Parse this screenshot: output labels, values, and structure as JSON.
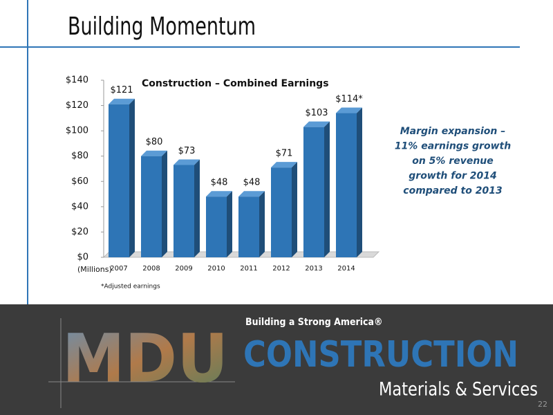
{
  "slide": {
    "title": "Building Momentum",
    "footnote": "*Adjusted earnings",
    "tagline": "Building a Strong America®",
    "logo_mdu": "MDU",
    "logo_construction": "CONSTRUCTION",
    "logo_sub": "Materials & Services",
    "page_number": "22",
    "note": [
      "Margin expansion –",
      "11% earnings growth",
      "on 5% revenue",
      "growth for 2014",
      "compared to 2013"
    ]
  },
  "chart_data": {
    "type": "bar",
    "title": "Construction – Combined Earnings",
    "y_label": "(Millions)",
    "categories": [
      "2007",
      "2008",
      "2009",
      "2010",
      "2011",
      "2012",
      "2013",
      "2014"
    ],
    "values": [
      121,
      80,
      73,
      48,
      48,
      71,
      103,
      114
    ],
    "value_labels": [
      "$121",
      "$80",
      "$73",
      "$48",
      "$48",
      "$71",
      "$103",
      "$114*"
    ],
    "color": "#2e75b6",
    "ylim": [
      0,
      140
    ],
    "yticks": [
      {
        "value": 0,
        "label": "$0"
      },
      {
        "value": 20,
        "label": "$20"
      },
      {
        "value": 40,
        "label": "$40"
      },
      {
        "value": 60,
        "label": "$60"
      },
      {
        "value": 80,
        "label": "$80"
      },
      {
        "value": 100,
        "label": "$100"
      },
      {
        "value": 120,
        "label": "$120"
      },
      {
        "value": 140,
        "label": "$140"
      }
    ]
  }
}
